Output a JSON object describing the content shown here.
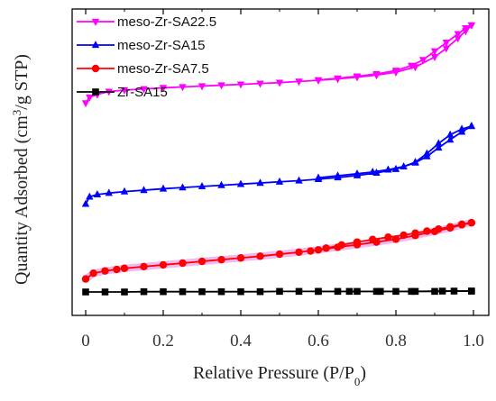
{
  "chart_data": {
    "type": "line",
    "title": "",
    "xlabel": "Relative Pressure (P/P0)",
    "xlabel_main": "Relative Pressure (P/P",
    "xlabel_sub": "0",
    "xlabel_end": ")",
    "ylabel": "Quantity Adsorbed (cm3/g STP)",
    "ylabel_main": "Quantity Adsorbed (cm",
    "ylabel_sup": "3",
    "ylabel_end": "/g STP)",
    "xlim": [
      0,
      1.0
    ],
    "ylim": [
      0,
      100
    ],
    "xticks": [
      0,
      0.2,
      0.4,
      0.6,
      0.8,
      1.0
    ],
    "xtick_labels": [
      "0",
      "0.2",
      "0.4",
      "0.6",
      "0.8",
      "1.0"
    ],
    "yticks_shown": false,
    "grid": false,
    "legend_position": "top-left",
    "series": [
      {
        "name": "meso-Zr-SA22.5",
        "color": "#ff00ff",
        "marker": "triangle-down",
        "adsorption": {
          "x": [
            0.0,
            0.01,
            0.03,
            0.06,
            0.1,
            0.15,
            0.2,
            0.25,
            0.3,
            0.35,
            0.4,
            0.45,
            0.5,
            0.55,
            0.6,
            0.65,
            0.7,
            0.75,
            0.8,
            0.85,
            0.9,
            0.93,
            0.96,
            0.98,
            0.995
          ],
          "y": [
            70.5,
            72.5,
            73.5,
            74.5,
            75.0,
            75.4,
            75.8,
            76.1,
            76.4,
            76.7,
            77.0,
            77.3,
            77.6,
            78.0,
            78.4,
            78.9,
            79.5,
            80.2,
            81.2,
            83.0,
            86.5,
            89.5,
            93.0,
            95.5,
            97.5
          ]
        },
        "desorption": {
          "x": [
            0.995,
            0.98,
            0.96,
            0.93,
            0.9,
            0.87,
            0.84,
            0.8,
            0.75,
            0.7,
            0.65,
            0.6
          ],
          "y": [
            97.5,
            96.5,
            94.5,
            91.5,
            88.5,
            85.5,
            83.5,
            81.8,
            80.6,
            79.8,
            79.1,
            78.5
          ]
        }
      },
      {
        "name": "meso-Zr-SA15",
        "color": "#0000ff",
        "marker": "triangle-up",
        "adsorption": {
          "x": [
            0.0,
            0.01,
            0.03,
            0.06,
            0.1,
            0.15,
            0.2,
            0.25,
            0.3,
            0.35,
            0.4,
            0.45,
            0.5,
            0.55,
            0.6,
            0.65,
            0.7,
            0.75,
            0.8,
            0.85,
            0.88,
            0.91,
            0.94,
            0.97,
            0.995
          ],
          "y": [
            35.5,
            38.0,
            38.8,
            39.3,
            39.8,
            40.3,
            40.8,
            41.2,
            41.6,
            42.0,
            42.4,
            42.8,
            43.2,
            43.6,
            44.1,
            44.7,
            45.4,
            46.3,
            47.6,
            49.8,
            52.0,
            55.0,
            57.8,
            60.5,
            62.5
          ]
        },
        "desorption": {
          "x": [
            0.995,
            0.97,
            0.94,
            0.91,
            0.88,
            0.85,
            0.82,
            0.78,
            0.74,
            0.7,
            0.65,
            0.6
          ],
          "y": [
            62.5,
            61.5,
            59.5,
            56.5,
            53.0,
            50.0,
            48.5,
            47.4,
            46.6,
            46.0,
            45.3,
            44.6
          ]
        }
      },
      {
        "name": "meso-Zr-SA7.5",
        "color": "#ff0000",
        "marker": "circle",
        "adsorption": {
          "x": [
            0.0,
            0.02,
            0.05,
            0.08,
            0.1,
            0.15,
            0.2,
            0.25,
            0.3,
            0.35,
            0.4,
            0.45,
            0.5,
            0.55,
            0.6,
            0.65,
            0.7,
            0.75,
            0.8,
            0.85,
            0.9,
            0.94,
            0.97,
            0.995
          ],
          "y": [
            9.5,
            11.5,
            12.3,
            12.8,
            13.2,
            13.8,
            14.4,
            15.0,
            15.6,
            16.2,
            16.8,
            17.4,
            18.1,
            18.8,
            19.6,
            20.5,
            21.4,
            22.3,
            23.3,
            24.6,
            26.0,
            27.2,
            28.3,
            29.0
          ]
        },
        "desorption": {
          "x": [
            0.995,
            0.97,
            0.94,
            0.91,
            0.88,
            0.85,
            0.82,
            0.78,
            0.74,
            0.7,
            0.66,
            0.62,
            0.58
          ],
          "y": [
            29.0,
            28.5,
            27.6,
            26.8,
            26.1,
            25.4,
            24.7,
            24.0,
            23.2,
            22.3,
            21.3,
            20.2,
            19.2
          ]
        }
      },
      {
        "name": "Zr-SA15",
        "color": "#000000",
        "marker": "square",
        "adsorption": {
          "x": [
            0.0,
            0.05,
            0.1,
            0.15,
            0.2,
            0.25,
            0.3,
            0.35,
            0.4,
            0.45,
            0.5,
            0.55,
            0.6,
            0.65,
            0.7,
            0.75,
            0.8,
            0.85,
            0.9,
            0.95,
            0.995
          ],
          "y": [
            5.0,
            5.0,
            5.0,
            5.1,
            5.1,
            5.1,
            5.1,
            5.1,
            5.1,
            5.1,
            5.2,
            5.2,
            5.2,
            5.2,
            5.2,
            5.2,
            5.2,
            5.2,
            5.2,
            5.3,
            5.3
          ]
        },
        "desorption": {
          "x": [
            0.995,
            0.92,
            0.84,
            0.76,
            0.68,
            0.6
          ],
          "y": [
            5.3,
            5.3,
            5.2,
            5.2,
            5.2,
            5.2
          ]
        }
      }
    ]
  }
}
